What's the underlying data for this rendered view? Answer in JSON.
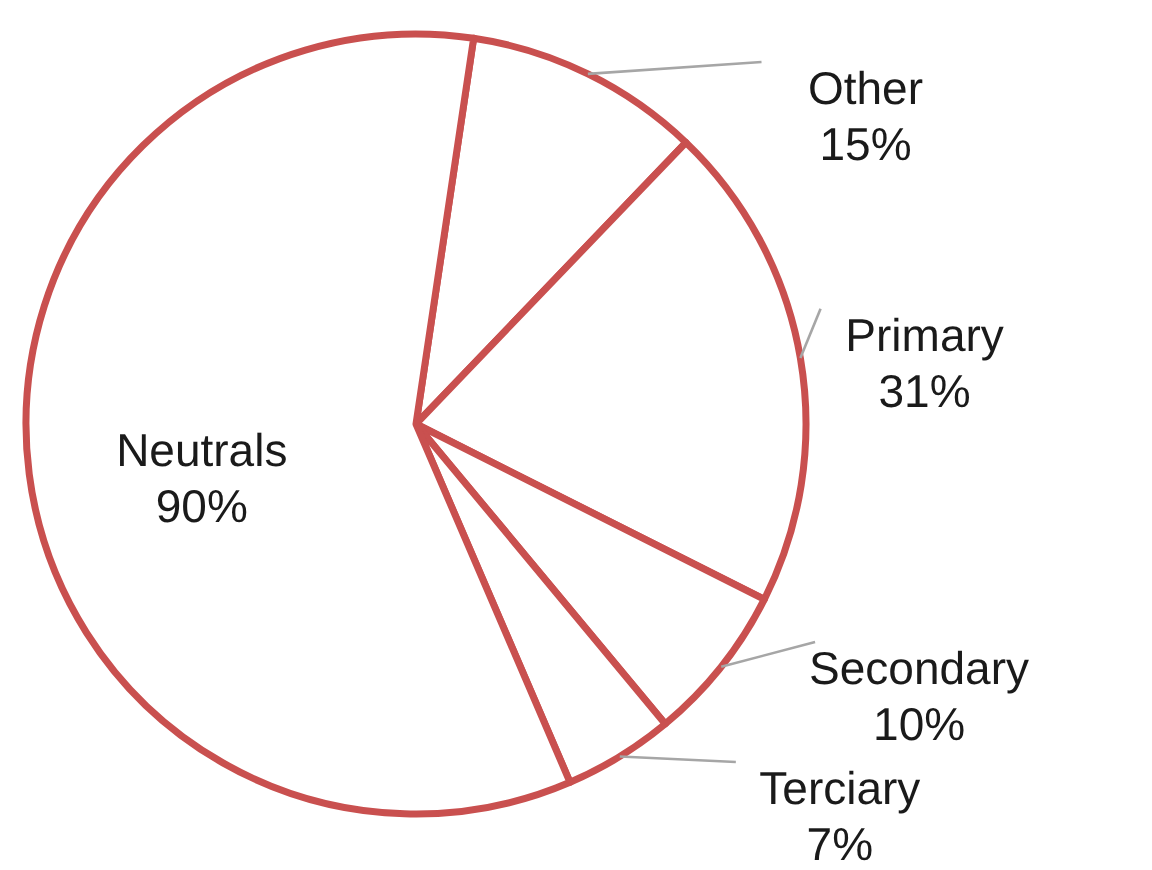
{
  "chart_data": {
    "type": "pie",
    "categories": [
      "Other",
      "Primary",
      "Secondary",
      "Terciary",
      "Neutrals"
    ],
    "values": [
      15,
      31,
      10,
      7,
      90
    ],
    "value_labels": [
      "15%",
      "31%",
      "10%",
      "7%",
      "90%"
    ],
    "colors": [
      "#ffffff",
      "#ffffff",
      "#ffffff",
      "#ffffff",
      "#ffffff"
    ]
  }
}
